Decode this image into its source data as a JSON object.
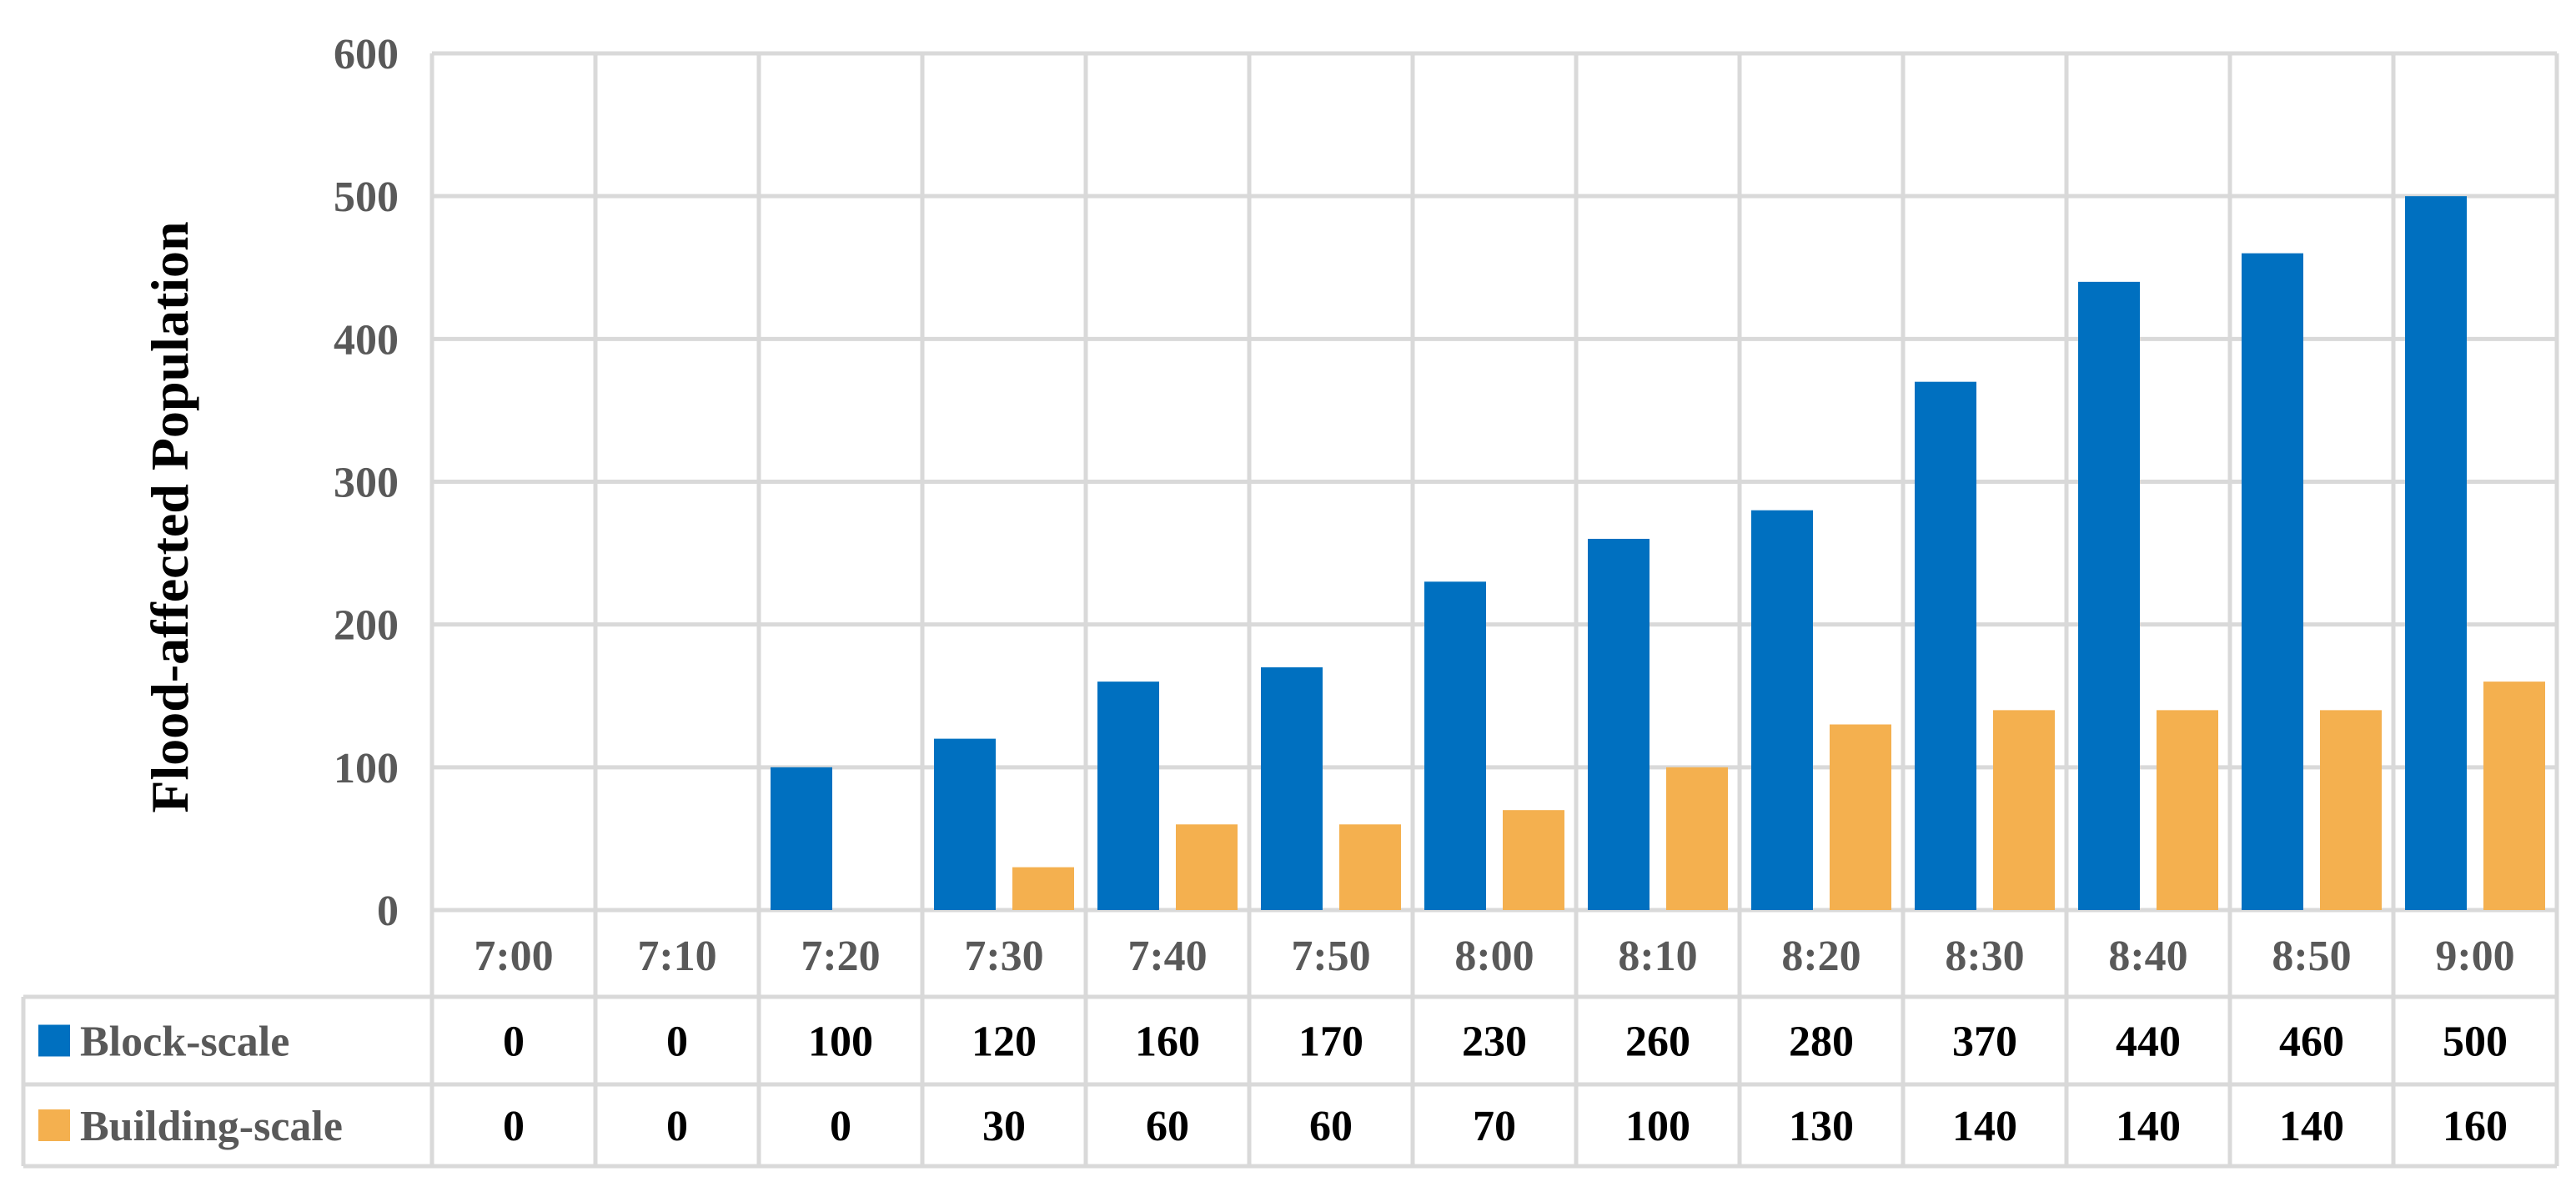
{
  "chart_data": {
    "type": "bar",
    "title": "",
    "xlabel": "",
    "ylabel": "Flood-affected Population",
    "ylim": [
      0,
      600
    ],
    "yticks": [
      0,
      100,
      200,
      300,
      400,
      500,
      600
    ],
    "grid": true,
    "legend_placement": "data-table",
    "categories": [
      "7:00",
      "7:10",
      "7:20",
      "7:30",
      "7:40",
      "7:50",
      "8:00",
      "8:10",
      "8:20",
      "8:30",
      "8:40",
      "8:50",
      "9:00"
    ],
    "series": [
      {
        "name": "Block-scale",
        "color": "#0070c0",
        "values": [
          0,
          0,
          100,
          120,
          160,
          170,
          230,
          260,
          280,
          370,
          440,
          460,
          500
        ]
      },
      {
        "name": "Building-scale",
        "color": "#f4b04f",
        "values": [
          0,
          0,
          0,
          30,
          60,
          60,
          70,
          100,
          130,
          140,
          140,
          140,
          160
        ]
      }
    ]
  }
}
